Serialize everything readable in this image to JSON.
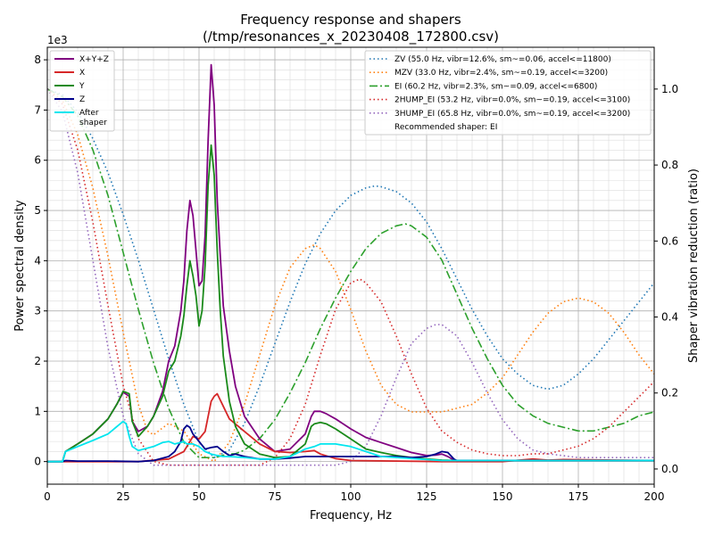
{
  "chart_data": {
    "type": "line",
    "title": "Frequency response and shapers",
    "subtitle": "(/tmp/resonances_x_20230408_172800.csv)",
    "xlabel": "Frequency, Hz",
    "ylabel": "Power spectral density",
    "y2label": "Shaper vibration reduction (ratio)",
    "y_offset_text": "1e3",
    "xlim": [
      0,
      200
    ],
    "ylim": [
      -0.45,
      8.25
    ],
    "y2lim": [
      -0.04,
      1.11
    ],
    "xticks": [
      0,
      25,
      50,
      75,
      100,
      125,
      150,
      175,
      200
    ],
    "yticks": [
      0,
      1,
      2,
      3,
      4,
      5,
      6,
      7,
      8
    ],
    "y2ticks": [
      0.0,
      0.2,
      0.4,
      0.6,
      0.8,
      1.0
    ],
    "grid": true,
    "legend_left_position": "top-left",
    "legend_right_position": "top-right",
    "psd_series": [
      {
        "name": "X+Y+Z",
        "color": "#800080",
        "style": "solid",
        "x": [
          0,
          5,
          6,
          10,
          15,
          20,
          23,
          25,
          27,
          28,
          30,
          33,
          35,
          38,
          40,
          42,
          44,
          45,
          46,
          47,
          48,
          49,
          50,
          51,
          52,
          53,
          54,
          55,
          56,
          57,
          58,
          60,
          62,
          65,
          70,
          75,
          80,
          85,
          87,
          88,
          90,
          92,
          95,
          100,
          105,
          110,
          115,
          120,
          125,
          128,
          130,
          132,
          134,
          135,
          140,
          150,
          160,
          170,
          180,
          200
        ],
        "y": [
          0,
          0,
          0.2,
          0.35,
          0.55,
          0.85,
          1.15,
          1.38,
          1.3,
          0.8,
          0.6,
          0.7,
          0.9,
          1.4,
          2.0,
          2.3,
          3.0,
          3.6,
          4.6,
          5.2,
          4.9,
          4.2,
          3.5,
          3.6,
          4.5,
          6.4,
          7.9,
          7.1,
          5.2,
          4.1,
          3.1,
          2.2,
          1.5,
          0.9,
          0.45,
          0.2,
          0.25,
          0.55,
          0.9,
          1.0,
          1.0,
          0.95,
          0.85,
          0.65,
          0.48,
          0.38,
          0.28,
          0.18,
          0.12,
          0.13,
          0.15,
          0.1,
          0.03,
          0.02,
          0.02,
          0.02,
          0.02,
          0.02,
          0.02,
          0.02
        ]
      },
      {
        "name": "X",
        "color": "#d62728",
        "style": "solid",
        "x": [
          0,
          30,
          40,
          45,
          48,
          50,
          52,
          54,
          55,
          56,
          58,
          60,
          65,
          70,
          75,
          80,
          85,
          88,
          90,
          95,
          100,
          130,
          150,
          160,
          165,
          170,
          200
        ],
        "y": [
          0,
          0,
          0.05,
          0.2,
          0.5,
          0.45,
          0.6,
          1.2,
          1.3,
          1.35,
          1.1,
          0.85,
          0.6,
          0.35,
          0.2,
          0.18,
          0.2,
          0.22,
          0.15,
          0.06,
          0.02,
          0.0,
          0.0,
          0.05,
          0.03,
          0.04,
          0.02
        ]
      },
      {
        "name": "Y",
        "color": "#1a8a1a",
        "style": "solid",
        "x": [
          0,
          5,
          6,
          10,
          15,
          20,
          23,
          25,
          27,
          28,
          30,
          33,
          35,
          38,
          40,
          42,
          44,
          45,
          46,
          47,
          48,
          49,
          50,
          51,
          52,
          53,
          54,
          55,
          56,
          57,
          58,
          60,
          62,
          65,
          70,
          75,
          80,
          85,
          87,
          88,
          90,
          92,
          95,
          100,
          105,
          110,
          115,
          120,
          125,
          130,
          135,
          140,
          200
        ],
        "y": [
          0,
          0,
          0.2,
          0.35,
          0.55,
          0.85,
          1.15,
          1.4,
          1.35,
          0.8,
          0.5,
          0.7,
          0.9,
          1.3,
          1.8,
          2.0,
          2.5,
          2.9,
          3.5,
          4.0,
          3.7,
          3.3,
          2.7,
          3.0,
          3.9,
          5.5,
          6.3,
          5.7,
          4.2,
          3.0,
          2.1,
          1.2,
          0.7,
          0.35,
          0.15,
          0.08,
          0.1,
          0.35,
          0.7,
          0.75,
          0.78,
          0.75,
          0.65,
          0.45,
          0.25,
          0.18,
          0.12,
          0.08,
          0.05,
          0.03,
          0.02,
          0.02,
          0.02
        ]
      },
      {
        "name": "Z",
        "color": "#00008b",
        "style": "solid",
        "x": [
          0,
          5,
          6,
          10,
          20,
          30,
          35,
          40,
          42,
          44,
          45,
          46,
          47,
          48,
          50,
          52,
          54,
          56,
          58,
          60,
          62,
          65,
          70,
          75,
          80,
          85,
          90,
          95,
          100,
          110,
          115,
          120,
          125,
          128,
          130,
          132,
          134,
          135,
          150,
          200
        ],
        "y": [
          0,
          0,
          0.02,
          0.01,
          0.01,
          0.0,
          0.02,
          0.1,
          0.2,
          0.4,
          0.65,
          0.72,
          0.68,
          0.55,
          0.4,
          0.25,
          0.28,
          0.3,
          0.2,
          0.12,
          0.15,
          0.1,
          0.05,
          0.05,
          0.07,
          0.1,
          0.1,
          0.1,
          0.1,
          0.1,
          0.1,
          0.08,
          0.1,
          0.15,
          0.2,
          0.18,
          0.05,
          0.02,
          0.02,
          0.02
        ]
      },
      {
        "name": "After\nshaper",
        "color": "#00e5ee",
        "style": "solid",
        "x": [
          0,
          5,
          6,
          10,
          15,
          20,
          23,
          25,
          26,
          27,
          28,
          30,
          35,
          38,
          40,
          42,
          44,
          45,
          46,
          48,
          50,
          52,
          54,
          56,
          58,
          60,
          65,
          70,
          75,
          80,
          85,
          88,
          90,
          95,
          100,
          105,
          110,
          130,
          200
        ],
        "y": [
          0,
          0,
          0.2,
          0.3,
          0.42,
          0.55,
          0.7,
          0.8,
          0.75,
          0.5,
          0.3,
          0.22,
          0.3,
          0.38,
          0.4,
          0.35,
          0.38,
          0.4,
          0.35,
          0.35,
          0.3,
          0.2,
          0.15,
          0.12,
          0.1,
          0.1,
          0.08,
          0.05,
          0.05,
          0.1,
          0.25,
          0.3,
          0.35,
          0.35,
          0.3,
          0.2,
          0.1,
          0.02,
          0.02
        ]
      }
    ],
    "shaper_series": [
      {
        "name": "ZV (55.0 Hz, vibr=12.6%, sm~=0.06, accel<=11800)",
        "color": "#1f77b4",
        "style": "dotted",
        "x": [
          0,
          5,
          10,
          15,
          20,
          25,
          30,
          35,
          40,
          45,
          50,
          55,
          60,
          65,
          70,
          75,
          80,
          85,
          90,
          95,
          100,
          105,
          108,
          110,
          115,
          120,
          125,
          130,
          135,
          140,
          145,
          150,
          155,
          160,
          165,
          170,
          175,
          180,
          185,
          190,
          195,
          200
        ],
        "y": [
          1.0,
          0.985,
          0.94,
          0.87,
          0.78,
          0.67,
          0.55,
          0.42,
          0.29,
          0.17,
          0.07,
          0.03,
          0.05,
          0.12,
          0.22,
          0.33,
          0.44,
          0.54,
          0.62,
          0.68,
          0.72,
          0.74,
          0.745,
          0.743,
          0.73,
          0.7,
          0.65,
          0.58,
          0.5,
          0.42,
          0.35,
          0.29,
          0.25,
          0.22,
          0.21,
          0.22,
          0.25,
          0.29,
          0.34,
          0.39,
          0.44,
          0.49
        ]
      },
      {
        "name": "MZV (33.0 Hz, vibr=2.4%, sm~=0.19, accel<=3200)",
        "color": "#ff7f0e",
        "style": "dotted",
        "x": [
          0,
          5,
          10,
          15,
          20,
          25,
          30,
          33,
          35,
          40,
          45,
          50,
          55,
          60,
          65,
          70,
          75,
          80,
          85,
          88,
          90,
          95,
          100,
          105,
          110,
          115,
          120,
          125,
          130,
          135,
          140,
          145,
          150,
          155,
          160,
          165,
          170,
          175,
          180,
          185,
          190,
          195,
          200
        ],
        "y": [
          1.0,
          0.97,
          0.88,
          0.74,
          0.56,
          0.36,
          0.17,
          0.1,
          0.09,
          0.12,
          0.1,
          0.04,
          0.02,
          0.07,
          0.17,
          0.3,
          0.43,
          0.53,
          0.58,
          0.59,
          0.58,
          0.52,
          0.42,
          0.31,
          0.22,
          0.17,
          0.15,
          0.15,
          0.15,
          0.16,
          0.17,
          0.2,
          0.24,
          0.3,
          0.36,
          0.41,
          0.44,
          0.45,
          0.44,
          0.41,
          0.36,
          0.3,
          0.25
        ]
      },
      {
        "name": "EI (60.2 Hz, vibr=2.3%, sm~=0.09, accel<=6800)",
        "color": "#2ca02c",
        "style": "dashdot",
        "x": [
          0,
          5,
          10,
          15,
          20,
          25,
          30,
          35,
          40,
          45,
          50,
          55,
          60,
          62,
          65,
          70,
          75,
          80,
          85,
          90,
          95,
          100,
          105,
          110,
          115,
          118,
          120,
          125,
          130,
          135,
          140,
          145,
          150,
          155,
          160,
          165,
          170,
          175,
          180,
          185,
          190,
          195,
          200
        ],
        "y": [
          1.0,
          0.98,
          0.93,
          0.84,
          0.72,
          0.57,
          0.42,
          0.28,
          0.16,
          0.07,
          0.03,
          0.03,
          0.04,
          0.04,
          0.05,
          0.08,
          0.13,
          0.2,
          0.28,
          0.37,
          0.45,
          0.52,
          0.58,
          0.62,
          0.64,
          0.645,
          0.64,
          0.61,
          0.55,
          0.46,
          0.37,
          0.29,
          0.22,
          0.17,
          0.14,
          0.12,
          0.11,
          0.1,
          0.1,
          0.11,
          0.12,
          0.14,
          0.15
        ]
      },
      {
        "name": "2HUMP_EI (53.2 Hz, vibr=0.0%, sm~=0.19, accel<=3100)",
        "color": "#d62728",
        "style": "dotted",
        "x": [
          0,
          5,
          10,
          15,
          20,
          25,
          30,
          35,
          40,
          45,
          50,
          55,
          60,
          65,
          70,
          75,
          80,
          85,
          90,
          95,
          100,
          103,
          105,
          110,
          115,
          120,
          125,
          130,
          135,
          140,
          145,
          150,
          155,
          160,
          165,
          170,
          175,
          180,
          185,
          190,
          195,
          200
        ],
        "y": [
          1.0,
          0.96,
          0.84,
          0.65,
          0.43,
          0.22,
          0.08,
          0.02,
          0.01,
          0.01,
          0.01,
          0.01,
          0.01,
          0.01,
          0.01,
          0.03,
          0.08,
          0.17,
          0.3,
          0.42,
          0.49,
          0.5,
          0.49,
          0.44,
          0.35,
          0.25,
          0.16,
          0.1,
          0.07,
          0.05,
          0.04,
          0.035,
          0.035,
          0.04,
          0.04,
          0.05,
          0.06,
          0.08,
          0.11,
          0.15,
          0.19,
          0.23
        ]
      },
      {
        "name": "3HUMP_EI (65.8 Hz, vibr=0.0%, sm~=0.19, accel<=3200)",
        "color": "#9467bd",
        "style": "dotted",
        "x": [
          0,
          5,
          10,
          15,
          20,
          25,
          30,
          35,
          40,
          45,
          50,
          55,
          60,
          65,
          70,
          75,
          80,
          85,
          90,
          95,
          100,
          105,
          110,
          115,
          120,
          125,
          128,
          130,
          135,
          140,
          145,
          150,
          155,
          160,
          165,
          170,
          175,
          180,
          185,
          190,
          195,
          200
        ],
        "y": [
          1.0,
          0.94,
          0.78,
          0.55,
          0.32,
          0.14,
          0.04,
          0.01,
          0.01,
          0.01,
          0.01,
          0.01,
          0.01,
          0.01,
          0.01,
          0.01,
          0.01,
          0.01,
          0.01,
          0.01,
          0.02,
          0.06,
          0.14,
          0.24,
          0.33,
          0.37,
          0.38,
          0.38,
          0.35,
          0.28,
          0.2,
          0.13,
          0.08,
          0.05,
          0.04,
          0.035,
          0.03,
          0.03,
          0.03,
          0.03,
          0.03,
          0.03
        ]
      }
    ],
    "recommendation_text": "Recommended shaper: EI"
  }
}
